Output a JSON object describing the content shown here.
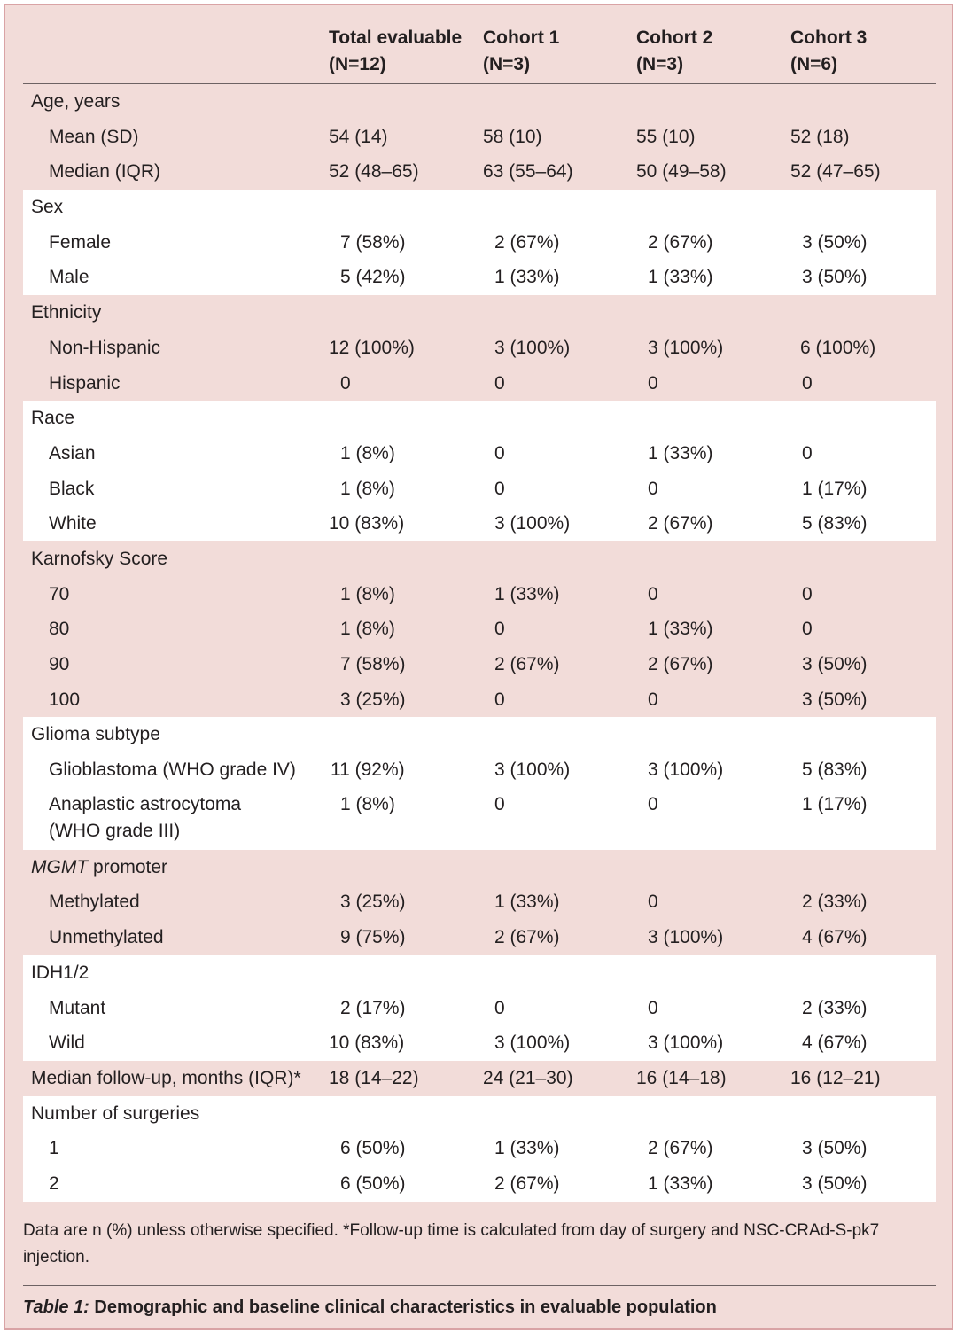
{
  "header": {
    "col1": [
      "Total evaluable",
      "(N=12)"
    ],
    "col2": [
      "Cohort 1",
      "(N=3)"
    ],
    "col3": [
      "Cohort 2",
      "(N=3)"
    ],
    "col4": [
      "Cohort 3",
      "(N=6)"
    ]
  },
  "sections": {
    "age": {
      "title": "Age, years",
      "rows": [
        {
          "label": "Mean (SD)",
          "values": [
            "54 (14)",
            "58 (10)",
            "55 (10)",
            "52 (18)"
          ]
        },
        {
          "label": "Median (IQR)",
          "values": [
            "52 (48–65)",
            "63 (55–64)",
            "50 (49–58)",
            "52 (47–65)"
          ]
        }
      ]
    },
    "sex": {
      "title": "Sex",
      "rows": [
        {
          "label": "Female",
          "values": [
            "7 (58%)",
            "2 (67%)",
            "2 (67%)",
            "3 (50%)"
          ]
        },
        {
          "label": "Male",
          "values": [
            "5 (42%)",
            "1 (33%)",
            "1 (33%)",
            "3 (50%)"
          ]
        }
      ]
    },
    "ethnicity": {
      "title": "Ethnicity",
      "rows": [
        {
          "label": "Non-Hispanic",
          "values": [
            "12 (100%)",
            "3 (100%)",
            "3 (100%)",
            "6 (100%)"
          ]
        },
        {
          "label": "Hispanic",
          "values": [
            "0",
            "0",
            "0",
            "0"
          ]
        }
      ]
    },
    "race": {
      "title": "Race",
      "rows": [
        {
          "label": "Asian",
          "values": [
            "1 (8%)",
            "0",
            "1 (33%)",
            "0"
          ]
        },
        {
          "label": "Black",
          "values": [
            "1 (8%)",
            "0",
            "0",
            "1 (17%)"
          ]
        },
        {
          "label": "White",
          "values": [
            "10 (83%)",
            "3 (100%)",
            "2 (67%)",
            "5 (83%)"
          ]
        }
      ]
    },
    "karnofsky": {
      "title": "Karnofsky Score",
      "rows": [
        {
          "label": "70",
          "values": [
            "1 (8%)",
            "1 (33%)",
            "0",
            "0"
          ]
        },
        {
          "label": "80",
          "values": [
            "1 (8%)",
            "0",
            "1 (33%)",
            "0"
          ]
        },
        {
          "label": "90",
          "values": [
            "7 (58%)",
            "2 (67%)",
            "2 (67%)",
            "3 (50%)"
          ]
        },
        {
          "label": "100",
          "values": [
            "3 (25%)",
            "0",
            "0",
            "3 (50%)"
          ]
        }
      ]
    },
    "glioma": {
      "title": "Glioma subtype",
      "rows": [
        {
          "label": "Glioblastoma (WHO grade IV)",
          "values": [
            "11 (92%)",
            "3 (100%)",
            "3 (100%)",
            "5 (83%)"
          ]
        },
        {
          "label": [
            "Anaplastic astrocytoma",
            "(WHO grade III)"
          ],
          "values": [
            "1 (8%)",
            "0",
            "0",
            "1 (17%)"
          ]
        }
      ]
    },
    "mgmt": {
      "title_italic": "MGMT",
      "title_rest": " promoter",
      "rows": [
        {
          "label": "Methylated",
          "values": [
            "3 (25%)",
            "1 (33%)",
            "0",
            "2 (33%)"
          ]
        },
        {
          "label": "Unmethylated",
          "values": [
            "9 (75%)",
            "2 (67%)",
            "3 (100%)",
            "4 (67%)"
          ]
        }
      ]
    },
    "idh": {
      "title": "IDH1/2",
      "rows": [
        {
          "label": "Mutant",
          "values": [
            "2 (17%)",
            "0",
            "0",
            "2 (33%)"
          ]
        },
        {
          "label": "Wild",
          "values": [
            "10 (83%)",
            "3 (100%)",
            "3 (100%)",
            "4 (67%)"
          ]
        }
      ]
    },
    "followup": {
      "label": "Median follow-up, months (IQR)*",
      "values": [
        "18 (14–22)",
        "24 (21–30)",
        "16 (14–18)",
        "16 (12–21)"
      ]
    },
    "surgeries": {
      "title": "Number of surgeries",
      "rows": [
        {
          "label": "1",
          "values": [
            "6 (50%)",
            "1 (33%)",
            "2 (67%)",
            "3 (50%)"
          ]
        },
        {
          "label": "2",
          "values": [
            "6 (50%)",
            "2 (67%)",
            "1 (33%)",
            "3 (50%)"
          ]
        }
      ]
    }
  },
  "footnote": "Data are n (%) unless otherwise specified. *Follow-up time is calculated from day of surgery and NSC-CRAd-S-pk7 injection.",
  "caption": {
    "tag": "Table 1:",
    "text": " Demographic and baseline clinical characteristics in evaluable population"
  }
}
